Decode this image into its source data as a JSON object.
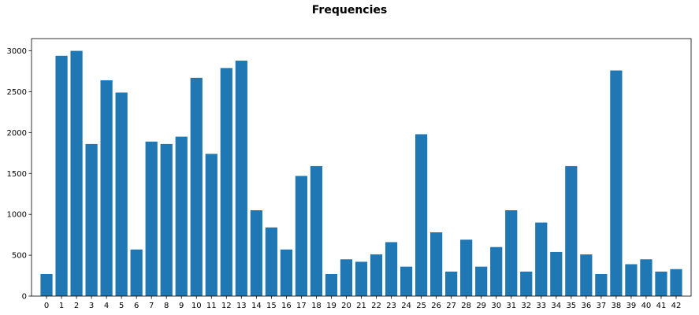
{
  "chart_data": {
    "type": "bar",
    "title": "Frequencies",
    "xlabel": "",
    "ylabel": "",
    "categories": [
      "0",
      "1",
      "2",
      "3",
      "4",
      "5",
      "6",
      "7",
      "8",
      "9",
      "10",
      "11",
      "12",
      "13",
      "14",
      "15",
      "16",
      "17",
      "18",
      "19",
      "20",
      "21",
      "22",
      "23",
      "24",
      "25",
      "26",
      "27",
      "28",
      "29",
      "30",
      "31",
      "32",
      "33",
      "34",
      "35",
      "36",
      "37",
      "38",
      "39",
      "40",
      "41",
      "42"
    ],
    "values": [
      270,
      2940,
      3000,
      1860,
      2640,
      2490,
      570,
      1890,
      1860,
      1950,
      2670,
      1740,
      2790,
      2880,
      1050,
      840,
      570,
      1470,
      1590,
      270,
      450,
      420,
      510,
      660,
      360,
      1980,
      780,
      300,
      690,
      360,
      600,
      1050,
      300,
      900,
      540,
      1590,
      510,
      270,
      2760,
      390,
      450,
      300,
      330
    ],
    "ylim": [
      0,
      3150
    ],
    "yticks": [
      0,
      500,
      1000,
      1500,
      2000,
      2500,
      3000
    ],
    "grid": false,
    "bar_color": "#1f77b4"
  }
}
